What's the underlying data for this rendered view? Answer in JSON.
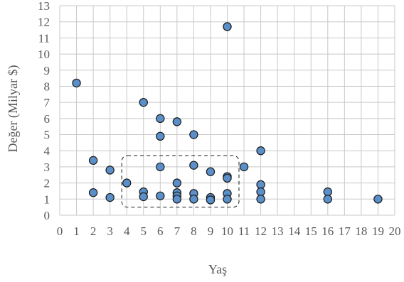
{
  "chart_data": {
    "type": "scatter",
    "xlabel": "Yaş",
    "ylabel": "Değer (Milyar $)",
    "xlim": [
      0,
      20
    ],
    "ylim": [
      0,
      13
    ],
    "xticks": [
      "0",
      "1",
      "2",
      "3",
      "4",
      "5",
      "6",
      "7",
      "8",
      "9",
      "10",
      "11",
      "12",
      "13",
      "14",
      "15",
      "16",
      "17",
      "18",
      "19",
      "20"
    ],
    "yticks": [
      "0",
      "1",
      "2",
      "3",
      "4",
      "5",
      "6",
      "7",
      "8",
      "9",
      "10",
      "11",
      "12",
      "13"
    ],
    "grid": true,
    "legend": "none",
    "marker_color": "#5b8fc9",
    "marker_edge_color": "#1a1a1a",
    "highlight_box": {
      "style": "dashed",
      "x_range": [
        3.7,
        10.7
      ],
      "y_range": [
        0.5,
        3.7
      ]
    },
    "points": [
      {
        "x": 1,
        "y": 8.2
      },
      {
        "x": 2,
        "y": 3.4
      },
      {
        "x": 2,
        "y": 1.4
      },
      {
        "x": 3,
        "y": 2.8
      },
      {
        "x": 3,
        "y": 1.1
      },
      {
        "x": 4,
        "y": 2.0
      },
      {
        "x": 5,
        "y": 7.0
      },
      {
        "x": 5,
        "y": 1.45
      },
      {
        "x": 5,
        "y": 1.15
      },
      {
        "x": 6,
        "y": 6.0
      },
      {
        "x": 6,
        "y": 4.9
      },
      {
        "x": 6,
        "y": 3.0
      },
      {
        "x": 6,
        "y": 1.2
      },
      {
        "x": 7,
        "y": 5.8
      },
      {
        "x": 7,
        "y": 2.0
      },
      {
        "x": 7,
        "y": 1.4
      },
      {
        "x": 7,
        "y": 1.2
      },
      {
        "x": 7,
        "y": 1.0
      },
      {
        "x": 8,
        "y": 5.0
      },
      {
        "x": 8,
        "y": 3.1
      },
      {
        "x": 8,
        "y": 1.35
      },
      {
        "x": 8,
        "y": 1.0
      },
      {
        "x": 9,
        "y": 2.7
      },
      {
        "x": 9,
        "y": 1.1
      },
      {
        "x": 9,
        "y": 0.95
      },
      {
        "x": 10,
        "y": 11.7
      },
      {
        "x": 10,
        "y": 2.4
      },
      {
        "x": 10,
        "y": 2.3
      },
      {
        "x": 10,
        "y": 1.35
      },
      {
        "x": 10,
        "y": 1.0
      },
      {
        "x": 11,
        "y": 3.0
      },
      {
        "x": 12,
        "y": 4.0
      },
      {
        "x": 12,
        "y": 1.9
      },
      {
        "x": 12,
        "y": 1.45
      },
      {
        "x": 12,
        "y": 1.0
      },
      {
        "x": 16,
        "y": 1.45
      },
      {
        "x": 16,
        "y": 1.0
      },
      {
        "x": 19,
        "y": 1.0
      }
    ]
  }
}
